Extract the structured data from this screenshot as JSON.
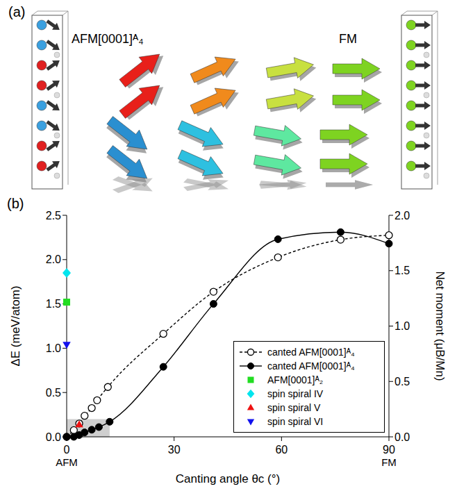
{
  "diagram": {
    "panel": "(a)",
    "left_label": "AFM[0001]ᴬ₄",
    "right_label": "FM"
  },
  "chart_data": {
    "type": "line",
    "panel": "(b)",
    "xlabel": "Canting angle θc (°)",
    "ylabel": "ΔE (meV/atom)",
    "y2label": "Net moment (μB/Mn)",
    "annotations": [
      "AFM",
      "FM"
    ],
    "xlim": [
      0,
      90
    ],
    "xticks": [
      0,
      30,
      60,
      90
    ],
    "ylim": [
      0,
      2.5
    ],
    "yticks": [
      {
        "value": 0,
        "label": "0.0"
      },
      {
        "value": 0.5,
        "label": "0.5"
      },
      {
        "value": 1,
        "label": "1.0"
      },
      {
        "value": 1.5,
        "label": "1.5"
      },
      {
        "value": 2,
        "label": "2.0"
      },
      {
        "value": 2.5,
        "label": "2.5"
      }
    ],
    "y2lim": [
      0,
      2
    ],
    "y2ticks": [
      {
        "value": 0,
        "label": "0.0"
      },
      {
        "value": 0.5,
        "label": "0.5"
      },
      {
        "value": 1,
        "label": "1.0"
      },
      {
        "value": 1.5,
        "label": "1.5"
      },
      {
        "value": 2,
        "label": "2.0"
      }
    ],
    "shaded_region": {
      "x": [
        0,
        12
      ],
      "y": [
        0,
        0.2
      ]
    },
    "legend": "lower right",
    "series": [
      {
        "name": "canted AFM[0001]ᴬ₄",
        "type": "line",
        "axis": "y2",
        "color": "#000000",
        "marker": "open_circle",
        "line_style": "dashed",
        "x": [
          0,
          2,
          3.5,
          5,
          7,
          8.5,
          11.5,
          27,
          41,
          59,
          76.5,
          90
        ],
        "values": [
          0,
          0.06,
          0.12,
          0.19,
          0.26,
          0.33,
          0.45,
          0.93,
          1.31,
          1.62,
          1.78,
          1.82
        ]
      },
      {
        "name": "canted AFM[0001]ᴬ₄",
        "type": "line",
        "axis": "y",
        "color": "#000000",
        "marker": "filled_circle",
        "line_style": "solid",
        "x": [
          0,
          2,
          3.5,
          5,
          7,
          9,
          12,
          27,
          41,
          59,
          76.5,
          90
        ],
        "values": [
          0,
          0,
          0.02,
          0.05,
          0.08,
          0.11,
          0.17,
          0.79,
          1.5,
          2.23,
          2.31,
          2.18
        ]
      },
      {
        "name": "AFM[0001]ᴬ₂",
        "type": "scatter",
        "axis": "y",
        "color": "#22dd22",
        "marker": "square",
        "x": [
          0
        ],
        "values": [
          1.52
        ]
      },
      {
        "name": "spin spiral IV",
        "type": "scatter",
        "axis": "y",
        "color": "#00e5ee",
        "marker": "diamond",
        "x": [
          0
        ],
        "values": [
          1.85
        ]
      },
      {
        "name": "spin spiral V",
        "type": "scatter",
        "axis": "y",
        "color": "#ee1111",
        "marker": "triangle",
        "x": [
          3.5
        ],
        "values": [
          0.14
        ]
      },
      {
        "name": "spin spiral VI",
        "type": "scatter",
        "axis": "y",
        "color": "#1111ee",
        "marker": "triangle_down",
        "x": [
          0
        ],
        "values": [
          1.04
        ]
      }
    ]
  }
}
